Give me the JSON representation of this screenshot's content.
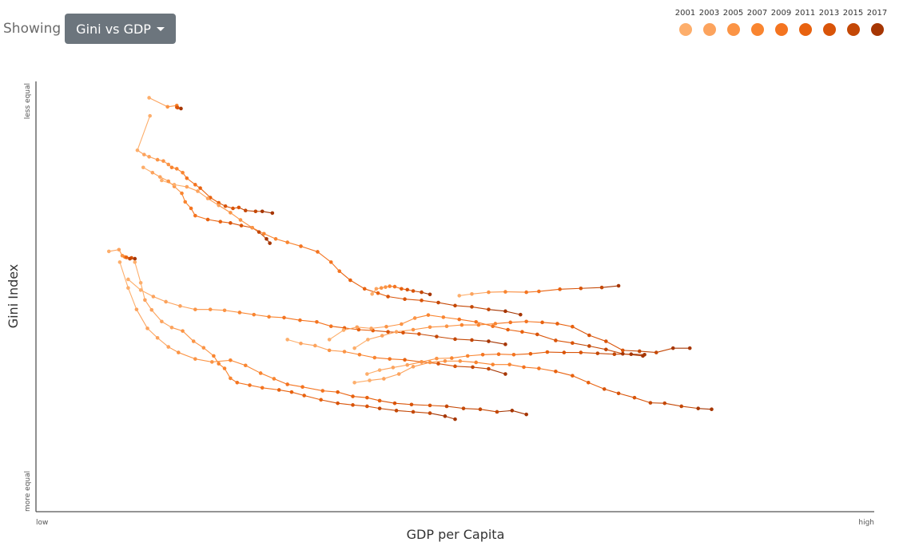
{
  "toolbar": {
    "showing_label": "Showing",
    "selected_view": "Gini vs GDP"
  },
  "legend": {
    "years": [
      {
        "label": "2001",
        "color": "#fdae6b"
      },
      {
        "label": "2003",
        "color": "#fca35d"
      },
      {
        "label": "2005",
        "color": "#fb9445"
      },
      {
        "label": "2007",
        "color": "#f98530"
      },
      {
        "label": "2009",
        "color": "#f47420"
      },
      {
        "label": "2011",
        "color": "#e8620f"
      },
      {
        "label": "2013",
        "color": "#d95409"
      },
      {
        "label": "2015",
        "color": "#c44806"
      },
      {
        "label": "2017",
        "color": "#a63603"
      }
    ]
  },
  "chart_data": {
    "type": "scatter",
    "xlabel": "GDP per Capita",
    "ylabel": "Gini Index",
    "x_ticks": {
      "low": "low",
      "high": "high"
    },
    "y_ticks": {
      "low": "more equal",
      "high": "less equal"
    },
    "xlim": [
      0,
      1
    ],
    "ylim": [
      0,
      1
    ],
    "year_range": [
      2001,
      2017
    ],
    "series": [
      {
        "points": [
          [
            0.135,
            0.962
          ],
          [
            0.157,
            0.941
          ],
          [
            0.168,
            0.944
          ],
          [
            0.168,
            0.94
          ],
          [
            0.169,
            0.939
          ],
          [
            0.173,
            0.937
          ]
        ]
      },
      {
        "points": [
          [
            0.087,
            0.605
          ],
          [
            0.099,
            0.609
          ],
          [
            0.103,
            0.595
          ],
          [
            0.106,
            0.592
          ],
          [
            0.108,
            0.591
          ],
          [
            0.114,
            0.59
          ],
          [
            0.112,
            0.588
          ],
          [
            0.118,
            0.588
          ]
        ]
      },
      {
        "points": [
          [
            0.136,
            0.92
          ],
          [
            0.121,
            0.84
          ],
          [
            0.129,
            0.83
          ],
          [
            0.135,
            0.825
          ],
          [
            0.145,
            0.818
          ],
          [
            0.152,
            0.815
          ],
          [
            0.158,
            0.807
          ],
          [
            0.162,
            0.8
          ],
          [
            0.168,
            0.797
          ],
          [
            0.175,
            0.788
          ],
          [
            0.18,
            0.775
          ],
          [
            0.19,
            0.76
          ],
          [
            0.196,
            0.752
          ],
          [
            0.208,
            0.73
          ],
          [
            0.218,
            0.718
          ],
          [
            0.226,
            0.71
          ],
          [
            0.235,
            0.705
          ],
          [
            0.242,
            0.707
          ],
          [
            0.25,
            0.7
          ],
          [
            0.262,
            0.698
          ],
          [
            0.27,
            0.698
          ],
          [
            0.282,
            0.694
          ]
        ]
      },
      {
        "points": [
          [
            0.128,
            0.8
          ],
          [
            0.139,
            0.788
          ],
          [
            0.148,
            0.778
          ],
          [
            0.158,
            0.768
          ],
          [
            0.165,
            0.756
          ],
          [
            0.174,
            0.74
          ],
          [
            0.178,
            0.72
          ],
          [
            0.185,
            0.705
          ],
          [
            0.19,
            0.688
          ],
          [
            0.205,
            0.679
          ],
          [
            0.22,
            0.674
          ],
          [
            0.232,
            0.671
          ],
          [
            0.245,
            0.665
          ],
          [
            0.258,
            0.66
          ],
          [
            0.266,
            0.65
          ],
          [
            0.275,
            0.634
          ],
          [
            0.279,
            0.624
          ]
        ]
      },
      {
        "points": [
          [
            0.118,
            0.58
          ],
          [
            0.125,
            0.532
          ],
          [
            0.13,
            0.492
          ],
          [
            0.138,
            0.469
          ],
          [
            0.15,
            0.442
          ],
          [
            0.162,
            0.428
          ],
          [
            0.175,
            0.42
          ],
          [
            0.188,
            0.396
          ],
          [
            0.2,
            0.381
          ],
          [
            0.212,
            0.362
          ],
          [
            0.218,
            0.344
          ],
          [
            0.225,
            0.333
          ],
          [
            0.232,
            0.31
          ],
          [
            0.24,
            0.3
          ],
          [
            0.255,
            0.294
          ],
          [
            0.27,
            0.288
          ],
          [
            0.29,
            0.283
          ],
          [
            0.305,
            0.278
          ],
          [
            0.32,
            0.27
          ],
          [
            0.34,
            0.26
          ],
          [
            0.36,
            0.252
          ],
          [
            0.378,
            0.248
          ],
          [
            0.395,
            0.245
          ],
          [
            0.41,
            0.24
          ],
          [
            0.43,
            0.235
          ],
          [
            0.45,
            0.232
          ],
          [
            0.47,
            0.229
          ],
          [
            0.488,
            0.222
          ],
          [
            0.5,
            0.215
          ]
        ]
      },
      {
        "points": [
          [
            0.1,
            0.58
          ],
          [
            0.11,
            0.52
          ],
          [
            0.12,
            0.47
          ],
          [
            0.133,
            0.426
          ],
          [
            0.145,
            0.404
          ],
          [
            0.158,
            0.383
          ],
          [
            0.17,
            0.37
          ],
          [
            0.19,
            0.355
          ],
          [
            0.21,
            0.348
          ],
          [
            0.232,
            0.352
          ],
          [
            0.25,
            0.34
          ],
          [
            0.268,
            0.322
          ],
          [
            0.284,
            0.309
          ],
          [
            0.3,
            0.296
          ],
          [
            0.318,
            0.29
          ],
          [
            0.342,
            0.281
          ],
          [
            0.36,
            0.278
          ],
          [
            0.378,
            0.268
          ],
          [
            0.395,
            0.265
          ],
          [
            0.41,
            0.258
          ],
          [
            0.428,
            0.252
          ],
          [
            0.448,
            0.249
          ],
          [
            0.47,
            0.247
          ],
          [
            0.49,
            0.245
          ],
          [
            0.51,
            0.24
          ],
          [
            0.53,
            0.238
          ],
          [
            0.55,
            0.232
          ],
          [
            0.568,
            0.235
          ],
          [
            0.585,
            0.226
          ]
        ]
      },
      {
        "points": [
          [
            0.15,
            0.77
          ],
          [
            0.165,
            0.76
          ],
          [
            0.18,
            0.755
          ],
          [
            0.193,
            0.745
          ],
          [
            0.205,
            0.728
          ],
          [
            0.218,
            0.712
          ],
          [
            0.232,
            0.695
          ],
          [
            0.244,
            0.678
          ],
          [
            0.258,
            0.66
          ],
          [
            0.272,
            0.646
          ],
          [
            0.286,
            0.634
          ],
          [
            0.3,
            0.626
          ],
          [
            0.316,
            0.617
          ],
          [
            0.336,
            0.604
          ],
          [
            0.352,
            0.58
          ],
          [
            0.362,
            0.559
          ],
          [
            0.375,
            0.538
          ],
          [
            0.392,
            0.518
          ],
          [
            0.408,
            0.508
          ],
          [
            0.42,
            0.5
          ],
          [
            0.44,
            0.494
          ],
          [
            0.46,
            0.491
          ],
          [
            0.48,
            0.486
          ],
          [
            0.5,
            0.479
          ],
          [
            0.52,
            0.476
          ],
          [
            0.54,
            0.47
          ],
          [
            0.56,
            0.466
          ],
          [
            0.578,
            0.458
          ]
        ]
      },
      {
        "points": [
          [
            0.11,
            0.54
          ],
          [
            0.125,
            0.515
          ],
          [
            0.14,
            0.5
          ],
          [
            0.155,
            0.488
          ],
          [
            0.172,
            0.478
          ],
          [
            0.19,
            0.47
          ],
          [
            0.208,
            0.47
          ],
          [
            0.225,
            0.468
          ],
          [
            0.243,
            0.463
          ],
          [
            0.26,
            0.458
          ],
          [
            0.278,
            0.453
          ],
          [
            0.296,
            0.451
          ],
          [
            0.315,
            0.445
          ],
          [
            0.335,
            0.441
          ],
          [
            0.352,
            0.431
          ],
          [
            0.368,
            0.427
          ],
          [
            0.385,
            0.423
          ],
          [
            0.402,
            0.421
          ],
          [
            0.42,
            0.418
          ],
          [
            0.438,
            0.416
          ],
          [
            0.457,
            0.413
          ],
          [
            0.478,
            0.407
          ],
          [
            0.5,
            0.401
          ],
          [
            0.52,
            0.399
          ],
          [
            0.54,
            0.396
          ],
          [
            0.56,
            0.389
          ]
        ]
      },
      {
        "points": [
          [
            0.3,
            0.4
          ],
          [
            0.316,
            0.391
          ],
          [
            0.333,
            0.386
          ],
          [
            0.35,
            0.375
          ],
          [
            0.368,
            0.372
          ],
          [
            0.386,
            0.365
          ],
          [
            0.404,
            0.358
          ],
          [
            0.422,
            0.355
          ],
          [
            0.44,
            0.353
          ],
          [
            0.46,
            0.348
          ],
          [
            0.48,
            0.344
          ],
          [
            0.5,
            0.338
          ],
          [
            0.521,
            0.336
          ],
          [
            0.54,
            0.332
          ],
          [
            0.56,
            0.32
          ]
        ]
      },
      {
        "points": [
          [
            0.35,
            0.4
          ],
          [
            0.367,
            0.422
          ],
          [
            0.383,
            0.429
          ],
          [
            0.4,
            0.426
          ],
          [
            0.418,
            0.43
          ],
          [
            0.436,
            0.436
          ],
          [
            0.452,
            0.45
          ],
          [
            0.468,
            0.457
          ],
          [
            0.486,
            0.452
          ],
          [
            0.505,
            0.447
          ],
          [
            0.525,
            0.441
          ],
          [
            0.545,
            0.431
          ],
          [
            0.563,
            0.423
          ],
          [
            0.58,
            0.418
          ],
          [
            0.598,
            0.412
          ],
          [
            0.62,
            0.398
          ],
          [
            0.64,
            0.392
          ],
          [
            0.66,
            0.385
          ],
          [
            0.68,
            0.377
          ],
          [
            0.7,
            0.367
          ],
          [
            0.724,
            0.362
          ]
        ]
      },
      {
        "points": [
          [
            0.38,
            0.38
          ],
          [
            0.396,
            0.4
          ],
          [
            0.413,
            0.409
          ],
          [
            0.43,
            0.418
          ],
          [
            0.45,
            0.423
          ],
          [
            0.47,
            0.429
          ],
          [
            0.49,
            0.431
          ],
          [
            0.508,
            0.434
          ],
          [
            0.528,
            0.434
          ],
          [
            0.548,
            0.437
          ],
          [
            0.566,
            0.44
          ],
          [
            0.585,
            0.442
          ],
          [
            0.604,
            0.44
          ],
          [
            0.622,
            0.437
          ],
          [
            0.64,
            0.43
          ],
          [
            0.66,
            0.41
          ],
          [
            0.68,
            0.396
          ],
          [
            0.7,
            0.375
          ],
          [
            0.72,
            0.373
          ],
          [
            0.74,
            0.37
          ],
          [
            0.76,
            0.38
          ],
          [
            0.78,
            0.38
          ]
        ]
      },
      {
        "points": [
          [
            0.395,
            0.32
          ],
          [
            0.41,
            0.329
          ],
          [
            0.426,
            0.335
          ],
          [
            0.443,
            0.341
          ],
          [
            0.46,
            0.348
          ],
          [
            0.478,
            0.356
          ],
          [
            0.496,
            0.357
          ],
          [
            0.515,
            0.362
          ],
          [
            0.533,
            0.365
          ],
          [
            0.552,
            0.366
          ],
          [
            0.57,
            0.365
          ],
          [
            0.59,
            0.367
          ],
          [
            0.61,
            0.371
          ],
          [
            0.63,
            0.37
          ],
          [
            0.65,
            0.37
          ],
          [
            0.67,
            0.368
          ],
          [
            0.69,
            0.366
          ],
          [
            0.71,
            0.366
          ],
          [
            0.726,
            0.365
          ]
        ]
      },
      {
        "points": [
          [
            0.38,
            0.3
          ],
          [
            0.398,
            0.305
          ],
          [
            0.415,
            0.309
          ],
          [
            0.433,
            0.32
          ],
          [
            0.45,
            0.337
          ],
          [
            0.47,
            0.347
          ],
          [
            0.488,
            0.35
          ],
          [
            0.506,
            0.35
          ],
          [
            0.525,
            0.347
          ],
          [
            0.545,
            0.342
          ],
          [
            0.565,
            0.342
          ],
          [
            0.582,
            0.336
          ],
          [
            0.6,
            0.333
          ],
          [
            0.62,
            0.326
          ],
          [
            0.64,
            0.316
          ],
          [
            0.659,
            0.3
          ],
          [
            0.678,
            0.285
          ],
          [
            0.695,
            0.275
          ],
          [
            0.714,
            0.265
          ],
          [
            0.733,
            0.253
          ],
          [
            0.75,
            0.252
          ],
          [
            0.77,
            0.245
          ],
          [
            0.79,
            0.24
          ],
          [
            0.806,
            0.238
          ]
        ]
      },
      {
        "points": [
          [
            0.401,
            0.506
          ],
          [
            0.406,
            0.518
          ],
          [
            0.412,
            0.52
          ],
          [
            0.417,
            0.522
          ],
          [
            0.422,
            0.524
          ],
          [
            0.428,
            0.523
          ],
          [
            0.436,
            0.518
          ],
          [
            0.443,
            0.516
          ],
          [
            0.45,
            0.513
          ],
          [
            0.46,
            0.51
          ],
          [
            0.47,
            0.505
          ]
        ]
      },
      {
        "points": [
          [
            0.505,
            0.502
          ],
          [
            0.52,
            0.506
          ],
          [
            0.54,
            0.51
          ],
          [
            0.56,
            0.511
          ],
          [
            0.585,
            0.51
          ],
          [
            0.6,
            0.512
          ],
          [
            0.625,
            0.517
          ],
          [
            0.65,
            0.519
          ],
          [
            0.675,
            0.521
          ],
          [
            0.695,
            0.525
          ]
        ]
      }
    ]
  }
}
